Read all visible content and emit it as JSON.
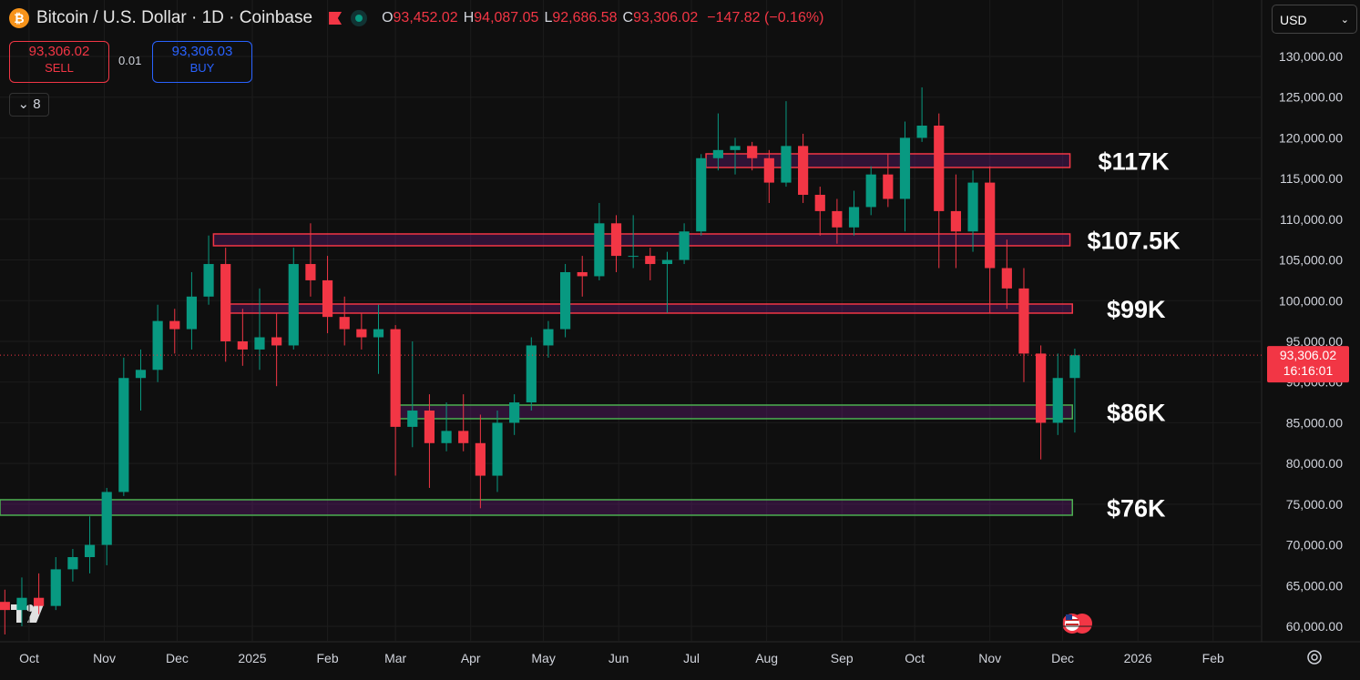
{
  "header": {
    "symbol": "Bitcoin / U.S. Dollar · 1D · Coinbase",
    "ohlc": [
      {
        "key": "O",
        "value": "93,452.02"
      },
      {
        "key": "H",
        "value": "94,087.05"
      },
      {
        "key": "L",
        "value": "92,686.58"
      },
      {
        "key": "C",
        "value": "93,306.02"
      }
    ],
    "change": "−147.82 (−0.16%)",
    "sell_price": "93,306.02",
    "sell_label": "SELL",
    "spread": "0.01",
    "buy_price": "93,306.03",
    "buy_label": "BUY",
    "indicators": "8",
    "currency": "USD"
  },
  "chart_data": {
    "type": "candlestick",
    "up_color": "#089981",
    "down_color": "#f23645",
    "grid": true,
    "xlim": [
      -12,
      508
    ],
    "xticks": [
      {
        "value": 0,
        "label": "Oct"
      },
      {
        "value": 31,
        "label": "Nov"
      },
      {
        "value": 61,
        "label": "Dec"
      },
      {
        "value": 92,
        "label": "2025"
      },
      {
        "value": 123,
        "label": "Feb"
      },
      {
        "value": 151,
        "label": "Mar"
      },
      {
        "value": 182,
        "label": "Apr"
      },
      {
        "value": 212,
        "label": "May"
      },
      {
        "value": 243,
        "label": "Jun"
      },
      {
        "value": 273,
        "label": "Jul"
      },
      {
        "value": 304,
        "label": "Aug"
      },
      {
        "value": 335,
        "label": "Sep"
      },
      {
        "value": 365,
        "label": "Oct"
      },
      {
        "value": 396,
        "label": "Nov"
      },
      {
        "value": 426,
        "label": "Dec"
      },
      {
        "value": 457,
        "label": "2026"
      },
      {
        "value": 488,
        "label": "Feb"
      }
    ],
    "ylim": [
      58100,
      136930
    ],
    "yticks": [
      {
        "value": 60000,
        "label": "60,000.00"
      },
      {
        "value": 65000,
        "label": "65,000.00"
      },
      {
        "value": 70000,
        "label": "70,000.00"
      },
      {
        "value": 75000,
        "label": "75,000.00"
      },
      {
        "value": 80000,
        "label": "80,000.00"
      },
      {
        "value": 85000,
        "label": "85,000.00"
      },
      {
        "value": 90000,
        "label": "90,000.00"
      },
      {
        "value": 95000,
        "label": "95,000.00"
      },
      {
        "value": 100000,
        "label": "100,000.00"
      },
      {
        "value": 105000,
        "label": "105,000.00"
      },
      {
        "value": 110000,
        "label": "110,000.00"
      },
      {
        "value": 115000,
        "label": "115,000.00"
      },
      {
        "value": 120000,
        "label": "120,000.00"
      },
      {
        "value": 125000,
        "label": "125,000.00"
      },
      {
        "value": 130000,
        "label": "130,000.00"
      }
    ],
    "last_price": {
      "value": 93306.02,
      "label": "93,306.02"
    },
    "countdown": "16:16:01",
    "zones": [
      {
        "label": "$117K",
        "low": 116358,
        "high": 118035,
        "start": 279,
        "end": 429,
        "color": "#f23645"
      },
      {
        "label": "$107.5K",
        "low": 106742,
        "high": 108195,
        "start": 76,
        "end": 429,
        "color": "#f23645"
      },
      {
        "label": "$99K",
        "low": 98468,
        "high": 99585,
        "start": 81.5,
        "end": 430,
        "color": "#f23645"
      },
      {
        "label": "$86K",
        "low": 85498,
        "high": 87175,
        "start": 150,
        "end": 430,
        "color": "#4caf50"
      },
      {
        "label": "$76K",
        "low": 73645,
        "high": 75546,
        "start": -12,
        "end": 430,
        "color": "#4caf50"
      }
    ],
    "candles": [
      {
        "x": -10,
        "open": 63000,
        "high": 64500,
        "low": 59000,
        "close": 62000
      },
      {
        "x": -3,
        "open": 62000,
        "high": 66000,
        "low": 60000,
        "close": 63500
      },
      {
        "x": 4,
        "open": 63500,
        "high": 66500,
        "low": 61500,
        "close": 62500
      },
      {
        "x": 11,
        "open": 62500,
        "high": 68500,
        "low": 62000,
        "close": 67000
      },
      {
        "x": 18,
        "open": 67000,
        "high": 69500,
        "low": 65500,
        "close": 68500
      },
      {
        "x": 25,
        "open": 68500,
        "high": 73500,
        "low": 66500,
        "close": 70000
      },
      {
        "x": 32,
        "open": 70000,
        "high": 77000,
        "low": 67500,
        "close": 76500
      },
      {
        "x": 39,
        "open": 76500,
        "high": 93000,
        "low": 76000,
        "close": 90500
      },
      {
        "x": 46,
        "open": 90500,
        "high": 94000,
        "low": 86500,
        "close": 91500
      },
      {
        "x": 53,
        "open": 91500,
        "high": 99500,
        "low": 90000,
        "close": 97500
      },
      {
        "x": 60,
        "open": 97500,
        "high": 99000,
        "low": 93500,
        "close": 96500
      },
      {
        "x": 67,
        "open": 96500,
        "high": 103500,
        "low": 94000,
        "close": 100500
      },
      {
        "x": 74,
        "open": 100500,
        "high": 108000,
        "low": 99500,
        "close": 104500
      },
      {
        "x": 81,
        "open": 104500,
        "high": 106500,
        "low": 92500,
        "close": 95000
      },
      {
        "x": 88,
        "open": 95000,
        "high": 99000,
        "low": 92000,
        "close": 94000
      },
      {
        "x": 95,
        "open": 94000,
        "high": 101500,
        "low": 91500,
        "close": 95500
      },
      {
        "x": 102,
        "open": 95500,
        "high": 98500,
        "low": 89500,
        "close": 94500
      },
      {
        "x": 109,
        "open": 94500,
        "high": 106500,
        "low": 94000,
        "close": 104500
      },
      {
        "x": 116,
        "open": 104500,
        "high": 109500,
        "low": 100500,
        "close": 102500
      },
      {
        "x": 123,
        "open": 102500,
        "high": 105500,
        "low": 96000,
        "close": 98000
      },
      {
        "x": 130,
        "open": 98000,
        "high": 100500,
        "low": 94500,
        "close": 96500
      },
      {
        "x": 137,
        "open": 96500,
        "high": 98500,
        "low": 94000,
        "close": 95500
      },
      {
        "x": 144,
        "open": 95500,
        "high": 99500,
        "low": 91000,
        "close": 96500
      },
      {
        "x": 151,
        "open": 96500,
        "high": 97000,
        "low": 78500,
        "close": 84500
      },
      {
        "x": 158,
        "open": 84500,
        "high": 95000,
        "low": 82000,
        "close": 86500
      },
      {
        "x": 165,
        "open": 86500,
        "high": 88500,
        "low": 77000,
        "close": 82500
      },
      {
        "x": 172,
        "open": 82500,
        "high": 87500,
        "low": 81500,
        "close": 84000
      },
      {
        "x": 179,
        "open": 84000,
        "high": 88500,
        "low": 81500,
        "close": 82500
      },
      {
        "x": 186,
        "open": 82500,
        "high": 86000,
        "low": 74500,
        "close": 78500
      },
      {
        "x": 193,
        "open": 78500,
        "high": 86500,
        "low": 76500,
        "close": 85000
      },
      {
        "x": 200,
        "open": 85000,
        "high": 88500,
        "low": 83500,
        "close": 87500
      },
      {
        "x": 207,
        "open": 87500,
        "high": 95500,
        "low": 86500,
        "close": 94500
      },
      {
        "x": 214,
        "open": 94500,
        "high": 97500,
        "low": 93000,
        "close": 96500
      },
      {
        "x": 221,
        "open": 96500,
        "high": 104500,
        "low": 95500,
        "close": 103500
      },
      {
        "x": 228,
        "open": 103500,
        "high": 105500,
        "low": 100500,
        "close": 103000
      },
      {
        "x": 235,
        "open": 103000,
        "high": 112000,
        "low": 102500,
        "close": 109500
      },
      {
        "x": 242,
        "open": 109500,
        "high": 110500,
        "low": 103500,
        "close": 105500
      },
      {
        "x": 249,
        "open": 105500,
        "high": 110500,
        "low": 104000,
        "close": 105500
      },
      {
        "x": 256,
        "open": 105500,
        "high": 106500,
        "low": 102500,
        "close": 104500
      },
      {
        "x": 263,
        "open": 104500,
        "high": 106000,
        "low": 98500,
        "close": 105000
      },
      {
        "x": 270,
        "open": 105000,
        "high": 109500,
        "low": 104500,
        "close": 108500
      },
      {
        "x": 277,
        "open": 108500,
        "high": 118000,
        "low": 108000,
        "close": 117500
      },
      {
        "x": 284,
        "open": 117500,
        "high": 123000,
        "low": 116000,
        "close": 118500
      },
      {
        "x": 291,
        "open": 118500,
        "high": 120000,
        "low": 115500,
        "close": 119000
      },
      {
        "x": 298,
        "open": 119000,
        "high": 119500,
        "low": 116000,
        "close": 117500
      },
      {
        "x": 305,
        "open": 117500,
        "high": 118500,
        "low": 112000,
        "close": 114500
      },
      {
        "x": 312,
        "open": 114500,
        "high": 124500,
        "low": 114000,
        "close": 119000
      },
      {
        "x": 319,
        "open": 119000,
        "high": 120500,
        "low": 112000,
        "close": 113000
      },
      {
        "x": 326,
        "open": 113000,
        "high": 114000,
        "low": 108000,
        "close": 111000
      },
      {
        "x": 333,
        "open": 111000,
        "high": 112500,
        "low": 107000,
        "close": 109000
      },
      {
        "x": 340,
        "open": 109000,
        "high": 113500,
        "low": 108000,
        "close": 111500
      },
      {
        "x": 347,
        "open": 111500,
        "high": 116500,
        "low": 110500,
        "close": 115500
      },
      {
        "x": 354,
        "open": 115500,
        "high": 118000,
        "low": 111500,
        "close": 112500
      },
      {
        "x": 361,
        "open": 112500,
        "high": 122000,
        "low": 108500,
        "close": 120000
      },
      {
        "x": 368,
        "open": 120000,
        "high": 126200,
        "low": 119500,
        "close": 121500
      },
      {
        "x": 375,
        "open": 121500,
        "high": 123000,
        "low": 104000,
        "close": 111000
      },
      {
        "x": 382,
        "open": 111000,
        "high": 115500,
        "low": 104000,
        "close": 108500
      },
      {
        "x": 389,
        "open": 108500,
        "high": 116000,
        "low": 106000,
        "close": 114500
      },
      {
        "x": 396,
        "open": 114500,
        "high": 116500,
        "low": 98500,
        "close": 104000
      },
      {
        "x": 403,
        "open": 104000,
        "high": 107500,
        "low": 99000,
        "close": 101500
      },
      {
        "x": 410,
        "open": 101500,
        "high": 104000,
        "low": 90000,
        "close": 93500
      },
      {
        "x": 417,
        "open": 93500,
        "high": 94500,
        "low": 80500,
        "close": 85000
      },
      {
        "x": 424,
        "open": 85000,
        "high": 93500,
        "low": 83500,
        "close": 90500
      },
      {
        "x": 431,
        "open": 90500,
        "high": 94100,
        "low": 83800,
        "close": 93300
      }
    ]
  }
}
